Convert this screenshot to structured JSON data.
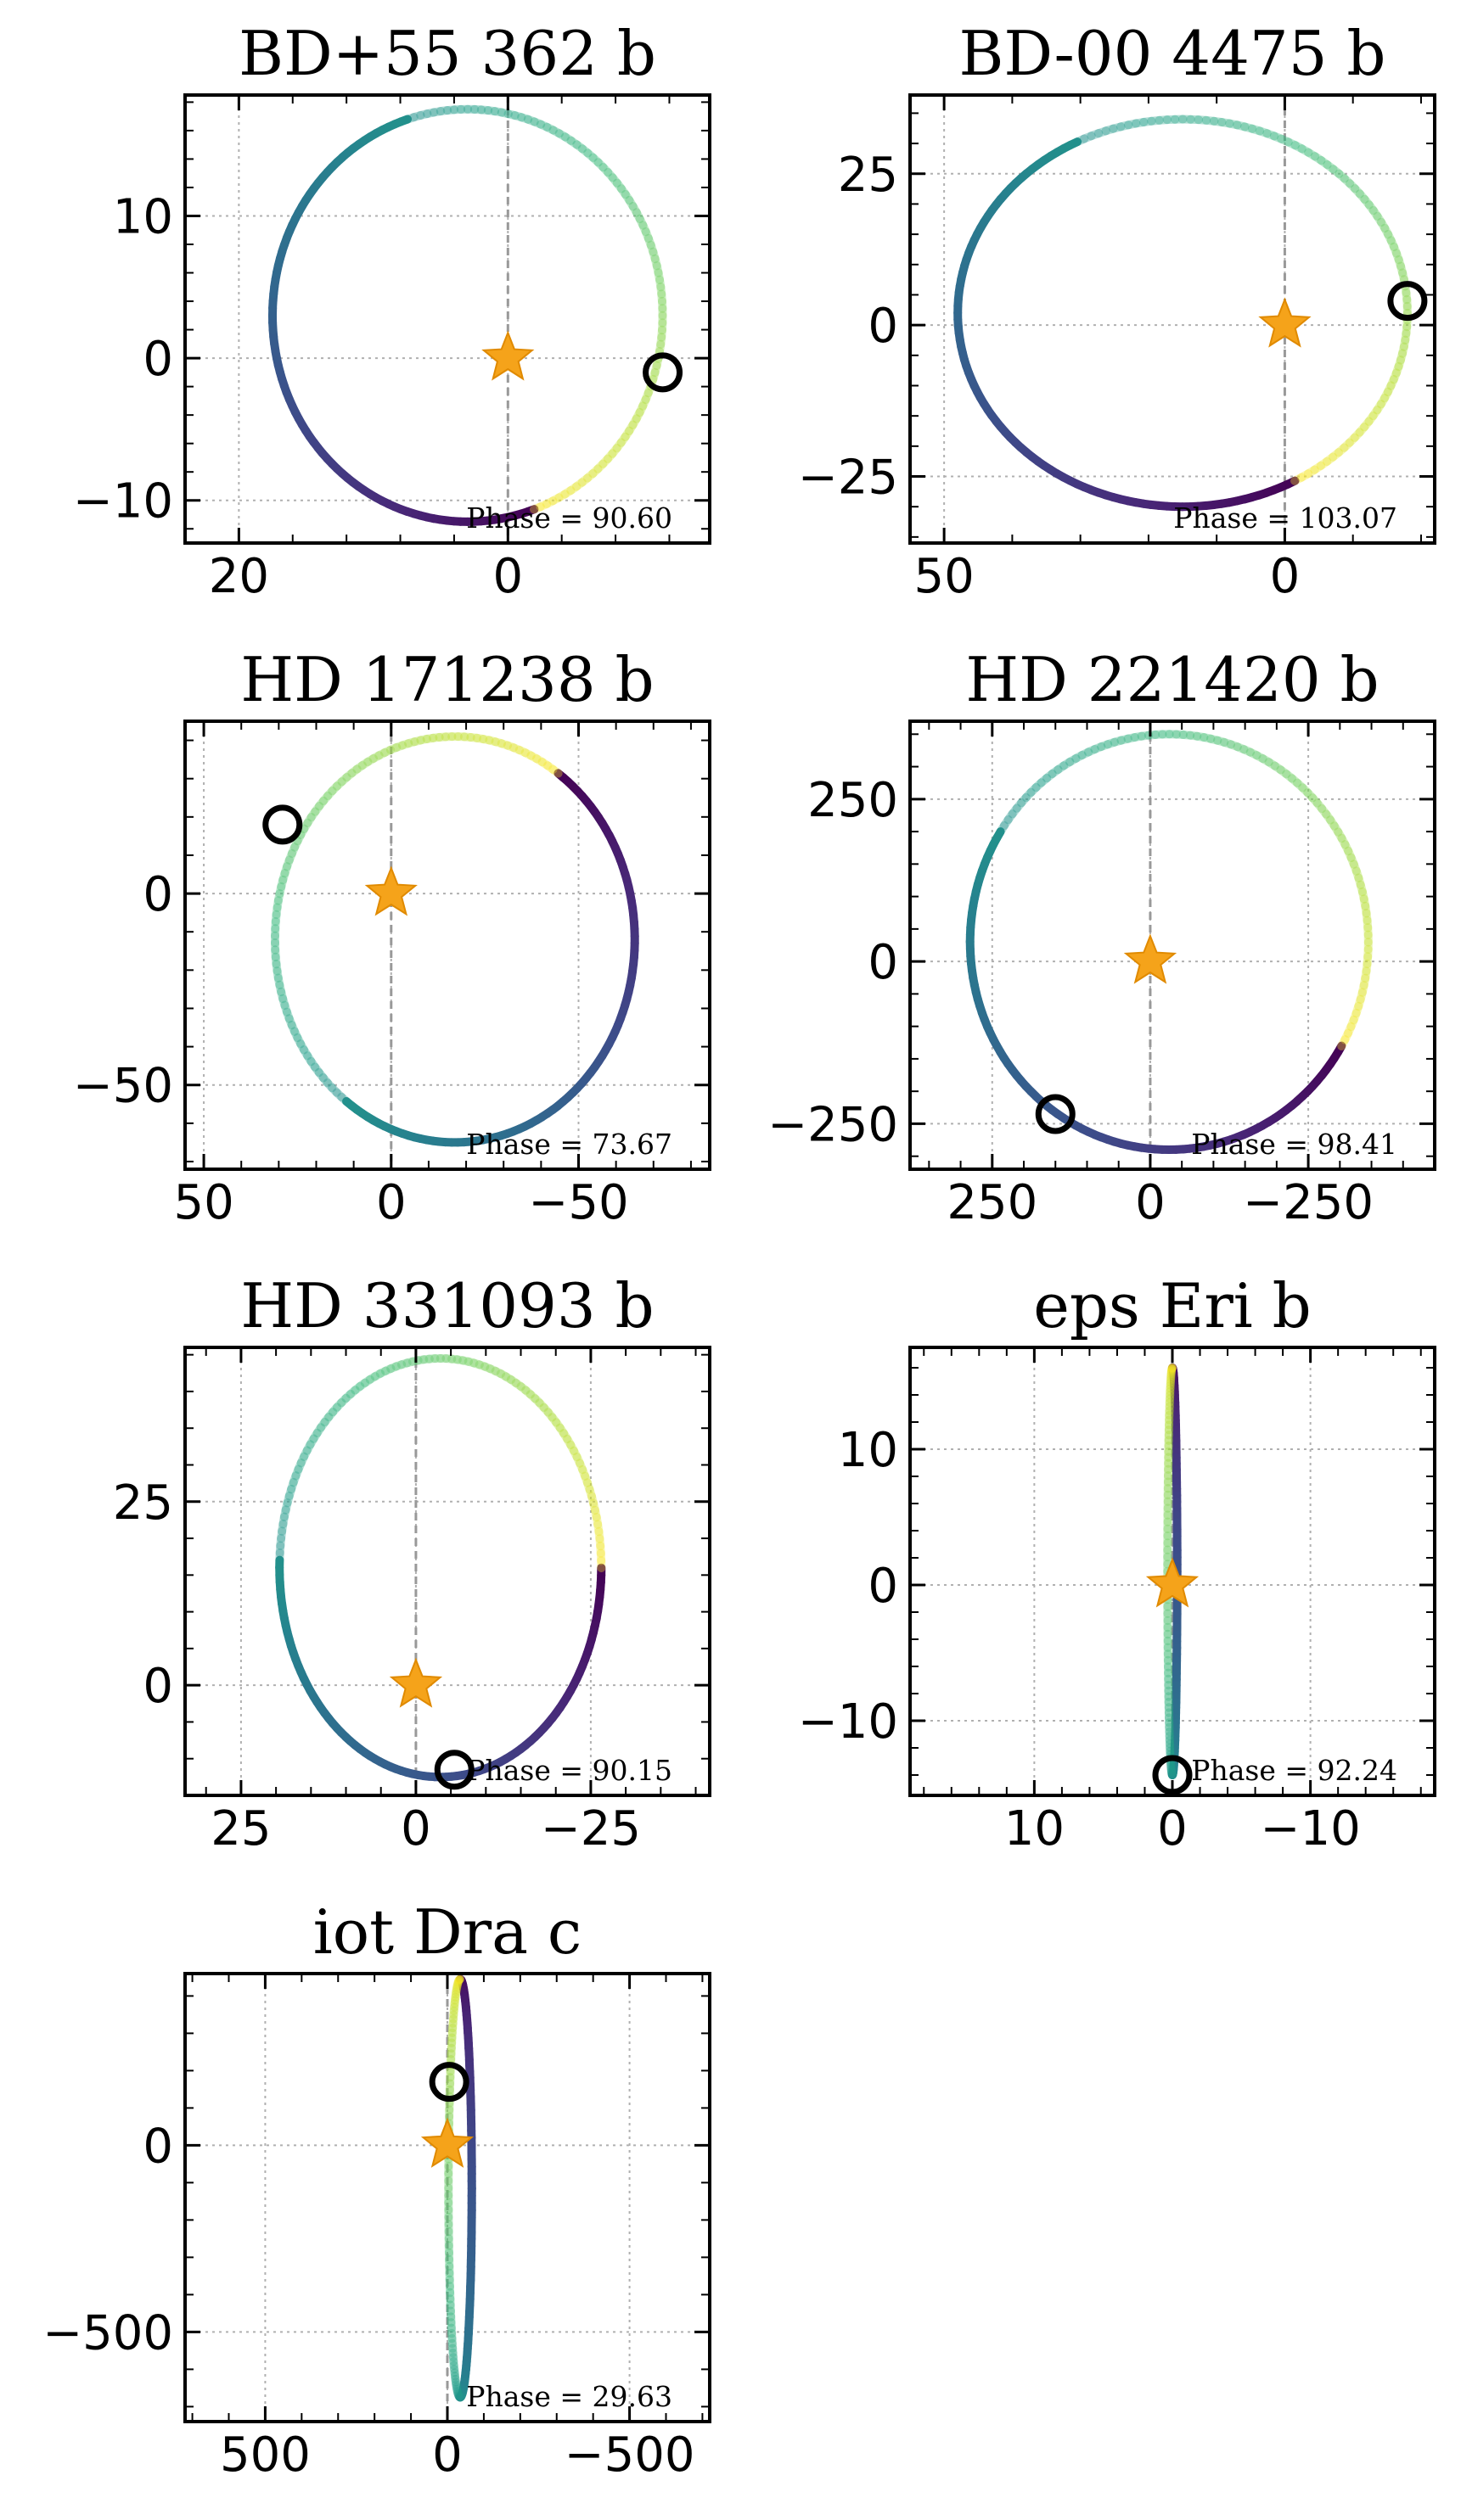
{
  "colormap": "viridis",
  "colors": {
    "star": "#f5a31a",
    "planet_marker": "#000000",
    "grid": "#b0b0b0",
    "node_line": "#999999"
  },
  "chart_data": [
    {
      "type": "line",
      "title": "BD+55 362 b",
      "xlabel": "",
      "ylabel": "",
      "x_inverted": true,
      "xlim": [
        24,
        -15
      ],
      "ylim": [
        -13,
        18.5
      ],
      "xticks": [
        20,
        0
      ],
      "xtick_labels": [
        "20",
        "0"
      ],
      "yticks": [
        10,
        0,
        -10
      ],
      "ytick_labels": [
        "10",
        "0",
        "−10"
      ],
      "grid": true,
      "orbit_ellipse": {
        "center": [
          3.0,
          3.0
        ],
        "semi_axis_x": 14.5,
        "semi_axis_y": 14.5
      },
      "color_start_angle_deg": 250,
      "planet_position": [
        -11.5,
        -1.0
      ],
      "star_position": [
        0,
        0
      ],
      "phase_text": "Phase = 90.60"
    },
    {
      "type": "line",
      "title": "BD-00 4475 b",
      "xlabel": "",
      "ylabel": "",
      "x_inverted": true,
      "xlim": [
        55,
        -22
      ],
      "ylim": [
        -36,
        38
      ],
      "xticks": [
        50,
        0
      ],
      "xtick_labels": [
        "50",
        "0"
      ],
      "yticks": [
        25,
        0,
        -25
      ],
      "ytick_labels": [
        "25",
        "0",
        "−25"
      ],
      "grid": true,
      "orbit_ellipse": {
        "center": [
          15.0,
          2.0
        ],
        "semi_axis_x": 33.0,
        "semi_axis_y": 32.0
      },
      "color_start_angle_deg": 240,
      "planet_position": [
        -18.0,
        4.0
      ],
      "star_position": [
        0,
        0
      ],
      "phase_text": "Phase = 103.07"
    },
    {
      "type": "line",
      "title": "HD 171238 b",
      "xlabel": "",
      "ylabel": "",
      "x_inverted": true,
      "xlim": [
        55,
        -85
      ],
      "ylim": [
        -72,
        45
      ],
      "xticks": [
        50,
        0,
        -50
      ],
      "xtick_labels": [
        "50",
        "0",
        "−50"
      ],
      "yticks": [
        0,
        -50
      ],
      "ytick_labels": [
        "0",
        "−50"
      ],
      "grid": true,
      "orbit_ellipse": {
        "center": [
          -17.0,
          -12.0
        ],
        "semi_axis_x": 48.0,
        "semi_axis_y": 53.0
      },
      "color_start_angle_deg": 125,
      "planet_position": [
        29.0,
        18.0
      ],
      "star_position": [
        0,
        0
      ],
      "phase_text": "Phase = 73.67"
    },
    {
      "type": "line",
      "title": "HD 221420 b",
      "xlabel": "",
      "ylabel": "",
      "x_inverted": true,
      "xlim": [
        380,
        -450
      ],
      "ylim": [
        -320,
        370
      ],
      "xticks": [
        250,
        0,
        -250
      ],
      "xtick_labels": [
        "250",
        "0",
        "−250"
      ],
      "yticks": [
        250,
        0,
        -250
      ],
      "ytick_labels": [
        "250",
        "0",
        "−250"
      ],
      "grid": true,
      "orbit_ellipse": {
        "center": [
          -30.0,
          30.0
        ],
        "semi_axis_x": 315.0,
        "semi_axis_y": 320.0
      },
      "color_start_angle_deg": 210,
      "planet_position": [
        150.0,
        -235.0
      ],
      "star_position": [
        0,
        0
      ],
      "phase_text": "Phase = 98.41"
    },
    {
      "type": "line",
      "title": "HD 331093 b",
      "xlabel": "",
      "ylabel": "",
      "x_inverted": true,
      "xlim": [
        33,
        -42
      ],
      "ylim": [
        -15,
        46
      ],
      "xticks": [
        25,
        0,
        -25
      ],
      "xtick_labels": [
        "25",
        "0",
        "−25"
      ],
      "yticks": [
        25,
        0
      ],
      "ytick_labels": [
        "25",
        "0"
      ],
      "grid": true,
      "orbit_ellipse": {
        "center": [
          -3.5,
          16.0
        ],
        "semi_axis_x": 23.0,
        "semi_axis_y": 28.5
      },
      "color_start_angle_deg": 180,
      "planet_position": [
        -5.5,
        -11.5
      ],
      "star_position": [
        0,
        0
      ],
      "phase_text": "Phase = 90.15"
    },
    {
      "type": "line",
      "title": "eps Eri b",
      "xlabel": "",
      "ylabel": "",
      "x_inverted": true,
      "xlim": [
        19,
        -19
      ],
      "ylim": [
        -15.5,
        17.5
      ],
      "xticks": [
        10,
        0,
        -10
      ],
      "xtick_labels": [
        "10",
        "0",
        "−10"
      ],
      "yticks": [
        10,
        0,
        -10
      ],
      "ytick_labels": [
        "10",
        "0",
        "−10"
      ],
      "grid": true,
      "orbit_ellipse": {
        "center": [
          0.0,
          1.0
        ],
        "semi_axis_x": 0.35,
        "semi_axis_y": 15.0
      },
      "color_start_angle_deg": 90,
      "planet_position": [
        0.0,
        -14.0
      ],
      "star_position": [
        0,
        0
      ],
      "phase_text": "Phase = 92.24"
    },
    {
      "type": "line",
      "title": "iot Dra c",
      "xlabel": "",
      "ylabel": "",
      "x_inverted": true,
      "xlim": [
        720,
        -720
      ],
      "ylim": [
        -740,
        460
      ],
      "xticks": [
        500,
        0,
        -500
      ],
      "xtick_labels": [
        "500",
        "0",
        "−500"
      ],
      "yticks": [
        0,
        -500
      ],
      "ytick_labels": [
        "0",
        "−500"
      ],
      "grid": true,
      "orbit_ellipse": {
        "center": [
          -35.0,
          -115.0
        ],
        "semi_axis_x": 32.0,
        "semi_axis_y": 560.0
      },
      "color_start_angle_deg": 90,
      "planet_position": [
        -5.0,
        170.0
      ],
      "star_position": [
        0,
        0
      ],
      "phase_text": "Phase = 29.63"
    }
  ]
}
